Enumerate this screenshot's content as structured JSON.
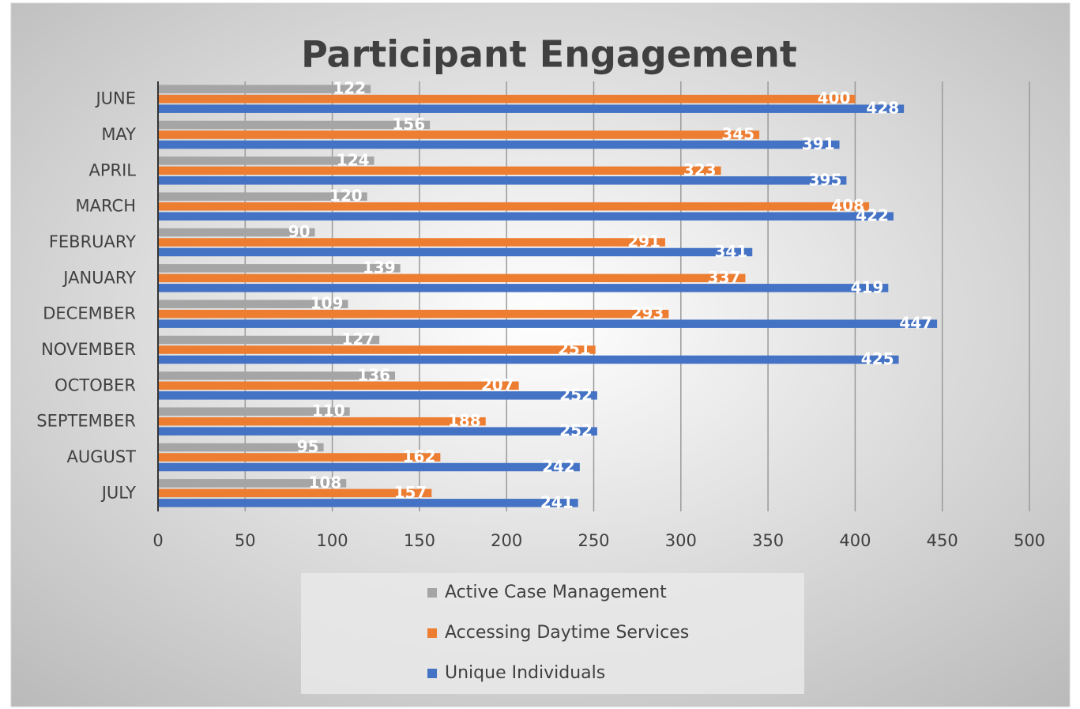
{
  "chart_data": {
    "type": "bar",
    "orientation": "horizontal",
    "title": "Participant Engagement",
    "categories": [
      "JULY",
      "AUGUST",
      "SEPTEMBER",
      "OCTOBER",
      "NOVEMBER",
      "DECEMBER",
      "JANUARY",
      "FEBRUARY",
      "MARCH",
      "APRIL",
      "MAY",
      "JUNE"
    ],
    "series": [
      {
        "name": "Active Case Management",
        "color": "#a5a5a5",
        "values": [
          108,
          95,
          110,
          136,
          127,
          109,
          139,
          90,
          120,
          124,
          156,
          122
        ]
      },
      {
        "name": "Accessing Daytime Services",
        "color": "#ed7d31",
        "values": [
          157,
          162,
          188,
          207,
          251,
          293,
          337,
          291,
          408,
          323,
          345,
          400
        ]
      },
      {
        "name": "Unique Individuals",
        "color": "#4472c4",
        "values": [
          241,
          242,
          252,
          252,
          425,
          447,
          419,
          341,
          422,
          395,
          391,
          428
        ]
      }
    ],
    "xlim": [
      0,
      500
    ],
    "xticks": [
      0,
      50,
      100,
      150,
      200,
      250,
      300,
      350,
      400,
      450,
      500
    ],
    "grid": true,
    "legend": "bottom"
  }
}
